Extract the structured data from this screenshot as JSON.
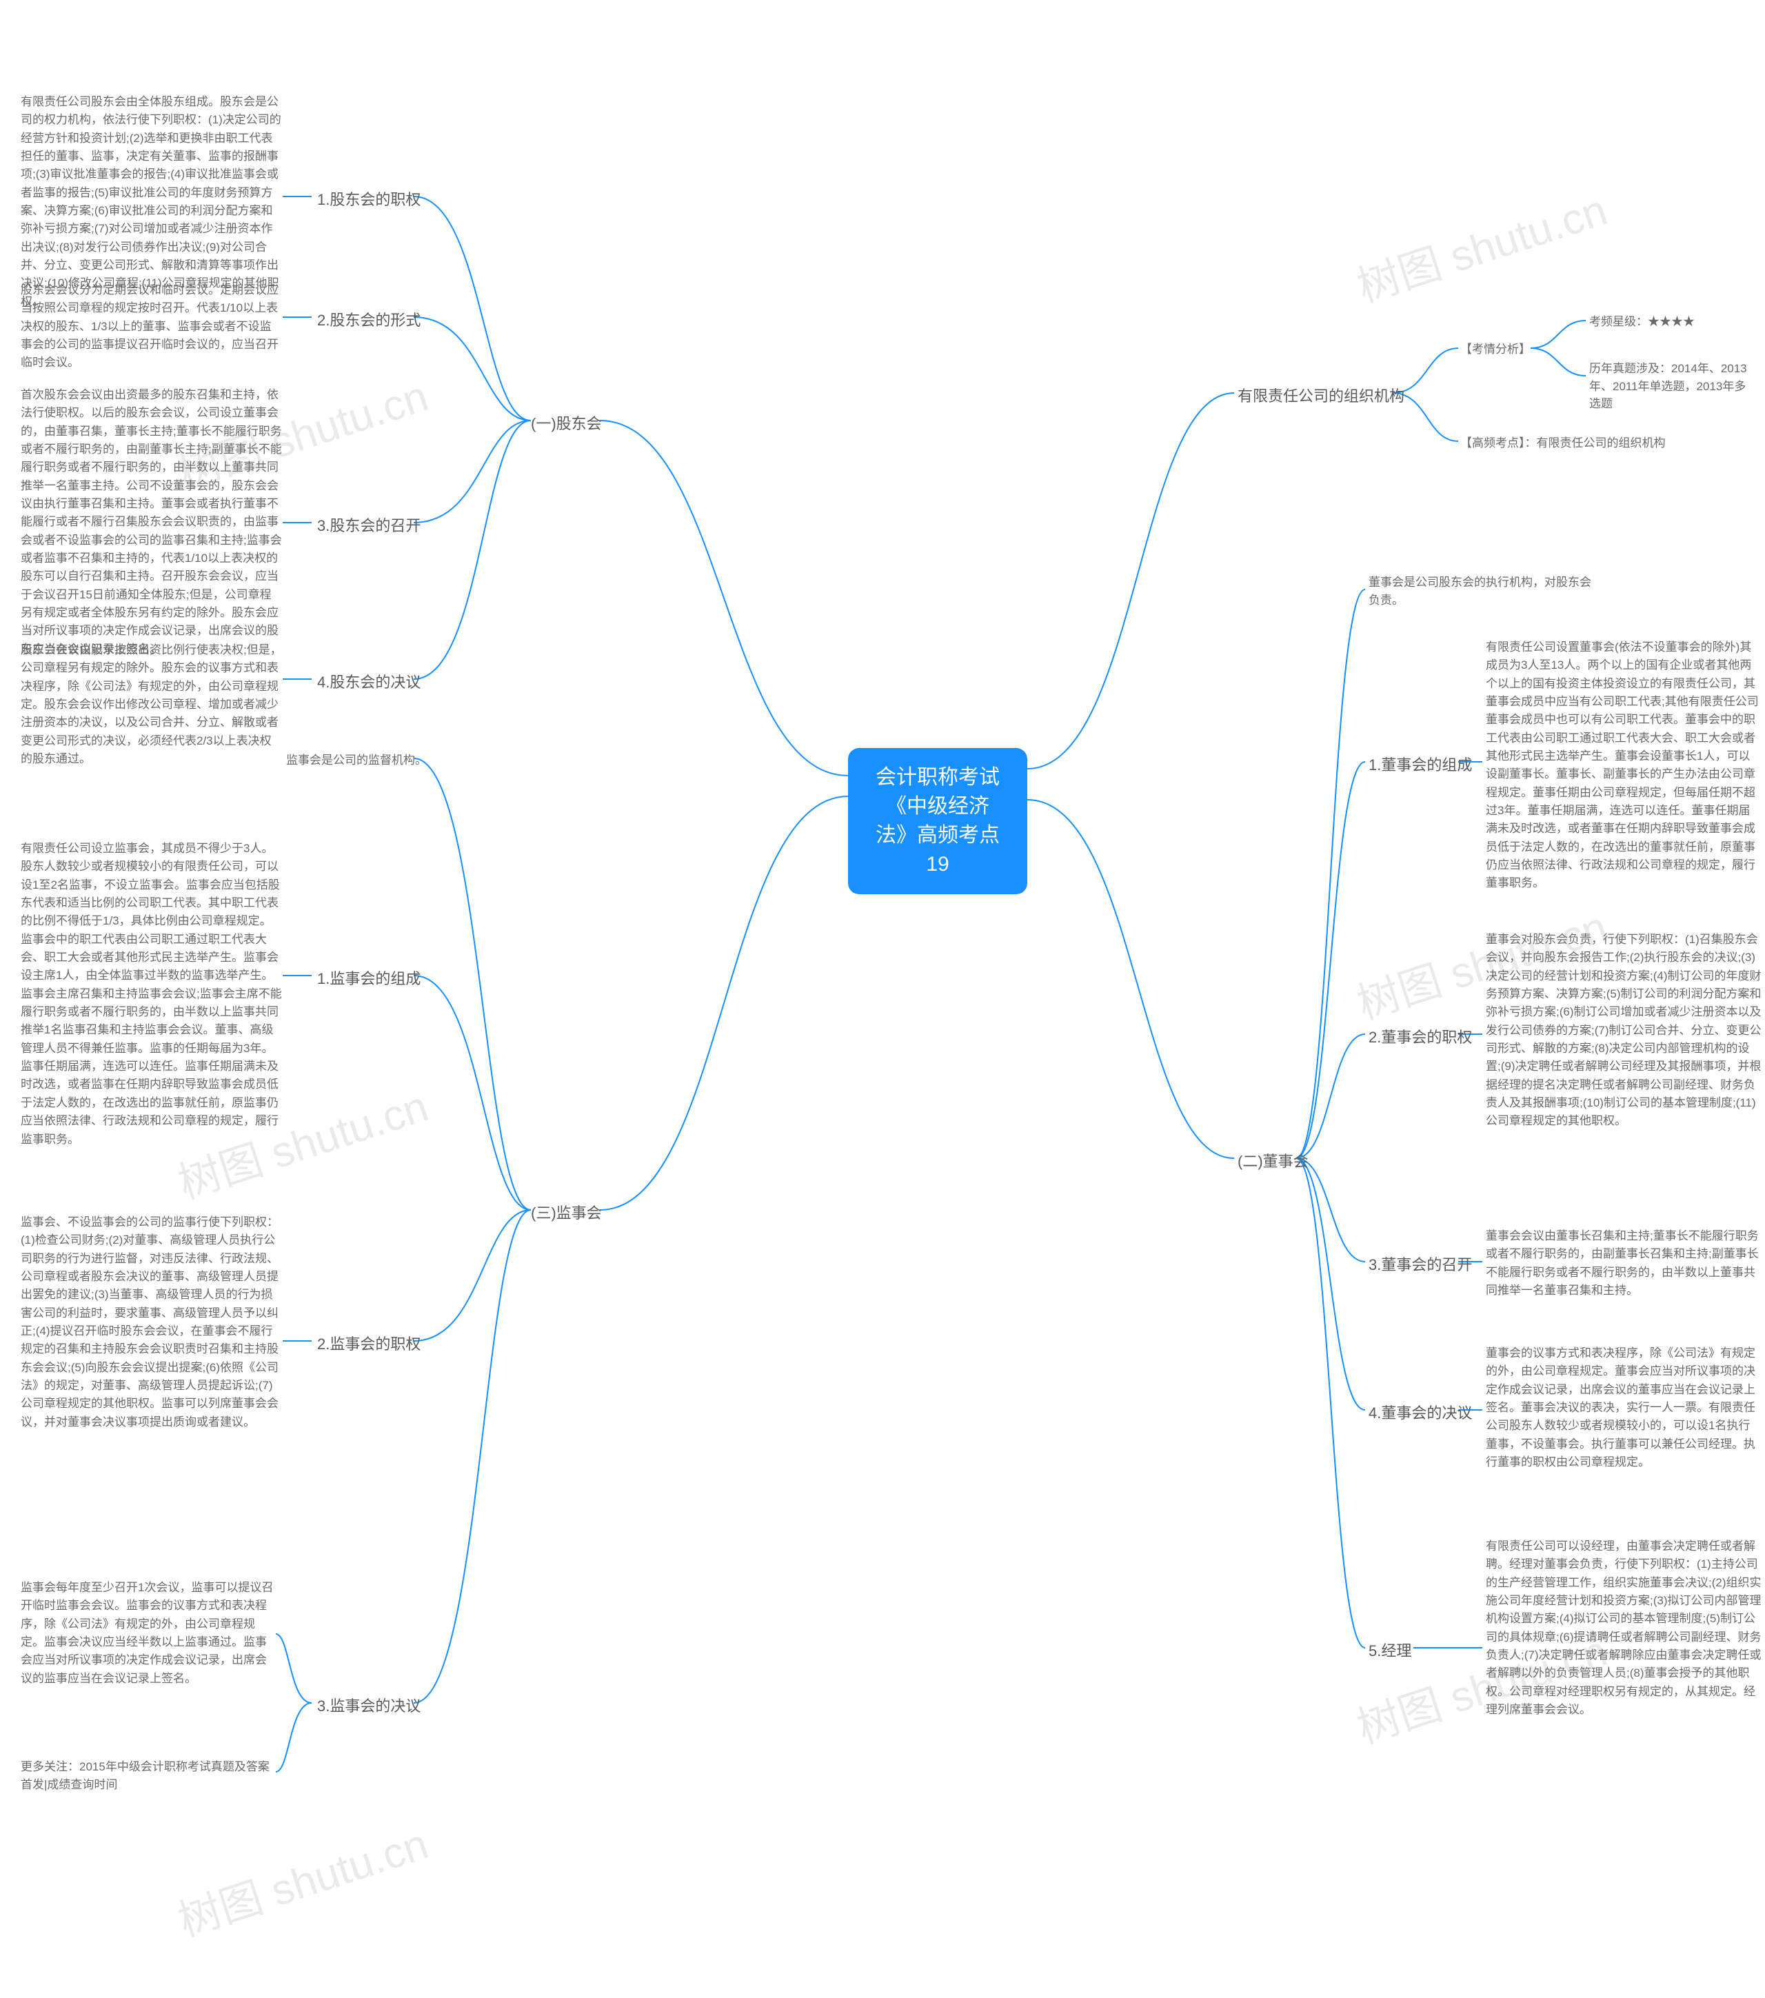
{
  "center": "会计职称考试《中级经济\n法》高频考点19",
  "colors": {
    "center_bg": "#1890ff",
    "center_text": "#ffffff",
    "link": "#1890ff",
    "text": "#5a5a5a",
    "leaf": "#6a6a6a",
    "watermark": "#000000",
    "watermark_opacity": 0.08
  },
  "left": {
    "s1": {
      "label": "(一)股东会",
      "n1": {
        "label": "1.股东会的职权",
        "text": "有限责任公司股东会由全体股东组成。股东会是公司的权力机构，依法行使下列职权：(1)决定公司的经营方针和投资计划;(2)选举和更换非由职工代表担任的董事、监事，决定有关董事、监事的报酬事项;(3)审议批准董事会的报告;(4)审议批准监事会或者监事的报告;(5)审议批准公司的年度财务预算方案、决算方案;(6)审议批准公司的利润分配方案和弥补亏损方案;(7)对公司增加或者减少注册资本作出决议;(8)对发行公司债券作出决议;(9)对公司合并、分立、变更公司形式、解散和清算等事项作出决议;(10)修改公司章程;(11)公司章程规定的其他职权。"
      },
      "n2": {
        "label": "2.股东会的形式",
        "text": "股东会会议分为定期会议和临时会议。定期会议应当按照公司章程的规定按时召开。代表1/10以上表决权的股东、1/3以上的董事、监事会或者不设监事会的公司的监事提议召开临时会议的，应当召开临时会议。"
      },
      "n3": {
        "label": "3.股东会的召开",
        "text": "首次股东会会议由出资最多的股东召集和主持，依法行使职权。以后的股东会会议，公司设立董事会的，由董事召集，董事长主持;董事长不能履行职务或者不履行职务的，由副董事长主持;副董事长不能履行职务或者不履行职务的，由半数以上董事共同推举一名董事主持。公司不设董事会的，股东会会议由执行董事召集和主持。董事会或者执行董事不能履行或者不履行召集股东会会议职责的，由监事会或者不设监事会的公司的监事召集和主持;监事会或者监事不召集和主持的，代表1/10以上表决权的股东可以自行召集和主持。召开股东会会议，应当于会议召开15日前通知全体股东;但是，公司章程另有规定或者全体股东另有约定的除外。股东会应当对所议事项的决定作成会议记录，出席会议的股东应当在会议记录上签名。"
      },
      "n4": {
        "label": "4.股东会的决议",
        "text": "股东会会议由股东按照出资比例行使表决权;但是，公司章程另有规定的除外。股东会的议事方式和表决程序，除《公司法》有规定的外，由公司章程规定。股东会会议作出修改公司章程、增加或者减少注册资本的决议，以及公司合并、分立、解散或者变更公司形式的决议，必须经代表2/3以上表决权的股东通过。"
      }
    },
    "s3": {
      "label": "(三)监事会",
      "intro": "监事会是公司的监督机构。",
      "n1": {
        "label": "1.监事会的组成",
        "text": "有限责任公司设立监事会，其成员不得少于3人。股东人数较少或者规模较小的有限责任公司，可以设1至2名监事，不设立监事会。监事会应当包括股东代表和适当比例的公司职工代表。其中职工代表的比例不得低于1/3，具体比例由公司章程规定。监事会中的职工代表由公司职工通过职工代表大会、职工大会或者其他形式民主选举产生。监事会设主席1人，由全体监事过半数的监事选举产生。监事会主席召集和主持监事会会议;监事会主席不能履行职务或者不履行职务的，由半数以上监事共同推举1名监事召集和主持监事会会议。董事、高级管理人员不得兼任监事。监事的任期每届为3年。监事任期届满，连选可以连任。监事任期届满未及时改选，或者监事在任期内辞职导致监事会成员低于法定人数的，在改选出的监事就任前，原监事仍应当依照法律、行政法规和公司章程的规定，履行监事职务。"
      },
      "n2": {
        "label": "2.监事会的职权",
        "text": "监事会、不设监事会的公司的监事行使下列职权：(1)检查公司财务;(2)对董事、高级管理人员执行公司职务的行为进行监督，对违反法律、行政法规、公司章程或者股东会决议的董事、高级管理人员提出罢免的建议;(3)当董事、高级管理人员的行为损害公司的利益时，要求董事、高级管理人员予以纠正;(4)提议召开临时股东会会议，在董事会不履行规定的召集和主持股东会会议职责时召集和主持股东会会议;(5)向股东会会议提出提案;(6)依照《公司法》的规定，对董事、高级管理人员提起诉讼;(7)公司章程规定的其他职权。监事可以列席董事会会议，并对董事会决议事项提出质询或者建议。"
      },
      "n3": {
        "label": "3.监事会的决议",
        "text1": "监事会每年度至少召开1次会议，监事可以提议召开临时监事会会议。监事会的议事方式和表决程序，除《公司法》有规定的外，由公司章程规定。监事会决议应当经半数以上监事通过。监事会应当对所议事项的决定作成会议记录，出席会议的监事应当在会议记录上签名。",
        "text2": "更多关注：2015年中级会计职称考试真题及答案首发|成绩查询时间"
      }
    }
  },
  "right": {
    "org": {
      "label": "有限责任公司的组织机构",
      "analysis_label": "【考情分析】",
      "freq": "考频星级：★★★★",
      "hist": "历年真题涉及：2014年、2013年、2011年单选题，2013年多选题",
      "hf": "【高频考点】：有限责任公司的组织机构"
    },
    "s2": {
      "label": "(二)董事会",
      "intro": "董事会是公司股东会的执行机构，对股东会负责。",
      "n1": {
        "label": "1.董事会的组成",
        "text": "有限责任公司设置董事会(依法不设董事会的除外)其成员为3人至13人。两个以上的国有企业或者其他两个以上的国有投资主体投资设立的有限责任公司，其董事会成员中应当有公司职工代表;其他有限责任公司董事会成员中也可以有公司职工代表。董事会中的职工代表由公司职工通过职工代表大会、职工大会或者其他形式民主选举产生。董事会设董事长1人，可以设副董事长。董事长、副董事长的产生办法由公司章程规定。董事任期由公司章程规定，但每届任期不超过3年。董事任期届满，连选可以连任。董事任期届满未及时改选，或者董事在任期内辞职导致董事会成员低于法定人数的，在改选出的董事就任前，原董事仍应当依照法律、行政法规和公司章程的规定，履行董事职务。"
      },
      "n2": {
        "label": "2.董事会的职权",
        "text": "董事会对股东会负责，行使下列职权：(1)召集股东会会议，并向股东会报告工作;(2)执行股东会的决议;(3)决定公司的经营计划和投资方案;(4)制订公司的年度财务预算方案、决算方案;(5)制订公司的利润分配方案和弥补亏损方案;(6)制订公司增加或者减少注册资本以及发行公司债券的方案;(7)制订公司合并、分立、变更公司形式、解散的方案;(8)决定公司内部管理机构的设置;(9)决定聘任或者解聘公司经理及其报酬事项，并根据经理的提名决定聘任或者解聘公司副经理、财务负责人及其报酬事项;(10)制订公司的基本管理制度;(11)公司章程规定的其他职权。"
      },
      "n3": {
        "label": "3.董事会的召开",
        "text": "董事会会议由董事长召集和主持;董事长不能履行职务或者不履行职务的，由副董事长召集和主持;副董事长不能履行职务或者不履行职务的，由半数以上董事共同推举一名董事召集和主持。"
      },
      "n4": {
        "label": "4.董事会的决议",
        "text": "董事会的议事方式和表决程序，除《公司法》有规定的外，由公司章程规定。董事会应当对所议事项的决定作成会议记录，出席会议的董事应当在会议记录上签名。董事会决议的表决，实行一人一票。有限责任公司股东人数较少或者规模较小的，可以设1名执行董事，不设董事会。执行董事可以兼任公司经理。执行董事的职权由公司章程规定。"
      },
      "n5": {
        "label": "5.经理",
        "text": "有限责任公司可以设经理，由董事会决定聘任或者解聘。经理对董事会负责，行使下列职权：(1)主持公司的生产经营管理工作，组织实施董事会决议;(2)组织实施公司年度经营计划和投资方案;(3)拟订公司内部管理机构设置方案;(4)拟订公司的基本管理制度;(5)制订公司的具体规章;(6)提请聘任或者解聘公司副经理、财务负责人;(7)决定聘任或者解聘除应由董事会决定聘任或者解聘以外的负责管理人员;(8)董事会授予的其他职权。公司章程对经理职权另有规定的，从其规定。经理列席董事会会议。"
      }
    }
  },
  "watermark": "树图 shutu.cn"
}
